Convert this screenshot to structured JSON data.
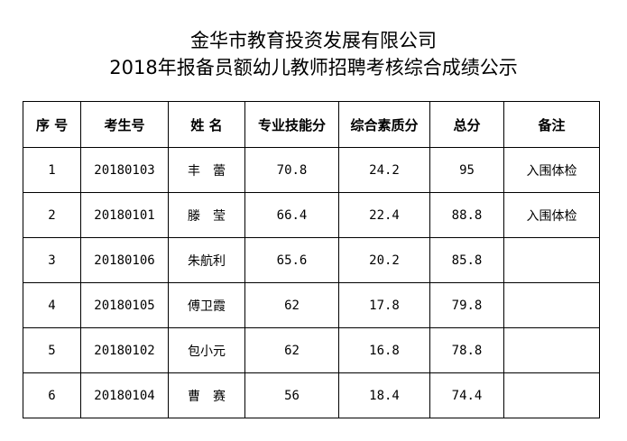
{
  "title_line1": "金华市教育投资发展有限公司",
  "title_line2": "2018年报备员额幼儿教师招聘考核综合成绩公示",
  "table": {
    "headers": [
      "序 号",
      "考生号",
      "姓 名",
      "专业技能分",
      "综合素质分",
      "总分",
      "备注"
    ],
    "rows": [
      [
        "1",
        "20180103",
        "丰　蕾",
        "70.8",
        "24.2",
        "95",
        "入围体检"
      ],
      [
        "2",
        "20180101",
        "滕　莹",
        "66.4",
        "22.4",
        "88.8",
        "入围体检"
      ],
      [
        "3",
        "20180106",
        "朱航利",
        "65.6",
        "20.2",
        "85.8",
        ""
      ],
      [
        "4",
        "20180105",
        "傅卫霞",
        "62",
        "17.8",
        "79.8",
        ""
      ],
      [
        "5",
        "20180102",
        "包小元",
        "62",
        "16.8",
        "78.8",
        ""
      ],
      [
        "6",
        "20180104",
        "曹　赛",
        "56",
        "18.4",
        "74.4",
        ""
      ]
    ]
  }
}
